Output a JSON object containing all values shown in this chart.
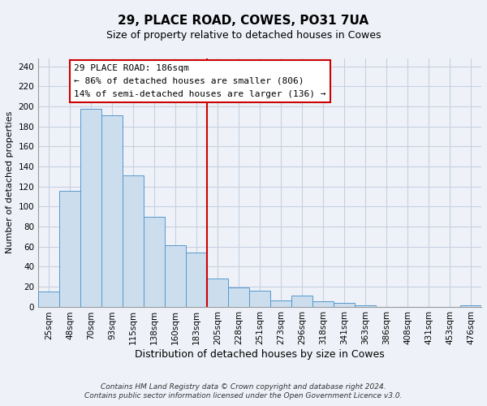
{
  "title": "29, PLACE ROAD, COWES, PO31 7UA",
  "subtitle": "Size of property relative to detached houses in Cowes",
  "xlabel": "Distribution of detached houses by size in Cowes",
  "ylabel": "Number of detached properties",
  "bar_labels": [
    "25sqm",
    "48sqm",
    "70sqm",
    "93sqm",
    "115sqm",
    "138sqm",
    "160sqm",
    "183sqm",
    "205sqm",
    "228sqm",
    "251sqm",
    "273sqm",
    "296sqm",
    "318sqm",
    "341sqm",
    "363sqm",
    "386sqm",
    "408sqm",
    "431sqm",
    "453sqm",
    "476sqm"
  ],
  "bar_heights": [
    15,
    116,
    198,
    191,
    131,
    90,
    61,
    54,
    28,
    19,
    16,
    6,
    11,
    5,
    4,
    1,
    0,
    0,
    0,
    0,
    1
  ],
  "bar_color": "#ccdded",
  "bar_edge_color": "#5599cc",
  "ylim": [
    0,
    248
  ],
  "yticks": [
    0,
    20,
    40,
    60,
    80,
    100,
    120,
    140,
    160,
    180,
    200,
    220,
    240
  ],
  "vline_x_index": 7,
  "vline_color": "#cc0000",
  "annotation_title": "29 PLACE ROAD: 186sqm",
  "annotation_line1": "← 86% of detached houses are smaller (806)",
  "annotation_line2": "14% of semi-detached houses are larger (136) →",
  "annotation_box_facecolor": "#ffffff",
  "annotation_box_edgecolor": "#cc0000",
  "footer1": "Contains HM Land Registry data © Crown copyright and database right 2024.",
  "footer2": "Contains public sector information licensed under the Open Government Licence v3.0.",
  "background_color": "#eef2f8",
  "grid_color": "#c8cfe0",
  "title_fontsize": 11,
  "subtitle_fontsize": 9,
  "ylabel_fontsize": 8,
  "xlabel_fontsize": 9,
  "tick_fontsize": 7.5,
  "annotation_fontsize": 8,
  "footer_fontsize": 6.5
}
